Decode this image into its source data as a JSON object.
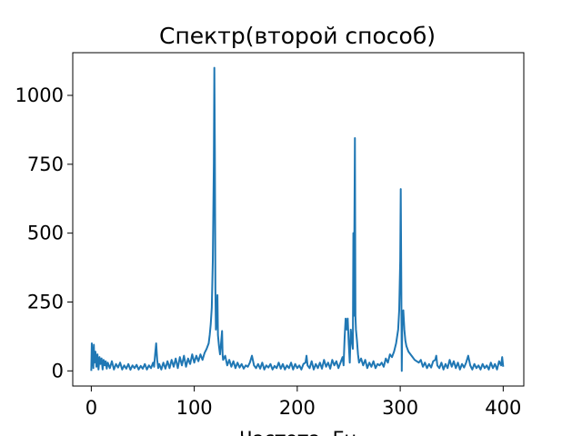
{
  "chart_data": {
    "type": "line",
    "title": "Спектр(второй способ)",
    "xlabel": "Частота, Гц",
    "ylabel": "",
    "xlim": [
      -18,
      420
    ],
    "ylim": [
      -55,
      1155
    ],
    "xticks": [
      0,
      100,
      200,
      300,
      400
    ],
    "yticks": [
      0,
      250,
      500,
      750,
      1000
    ],
    "grid": false,
    "series": [
      {
        "color": "#1f77b4",
        "points": [
          [
            0,
            0
          ],
          [
            0.5,
            100
          ],
          [
            1,
            20
          ],
          [
            1.5,
            85
          ],
          [
            2,
            10
          ],
          [
            2.5,
            95
          ],
          [
            3,
            30
          ],
          [
            4,
            70
          ],
          [
            5,
            15
          ],
          [
            6,
            60
          ],
          [
            7,
            5
          ],
          [
            8,
            50
          ],
          [
            9,
            25
          ],
          [
            10,
            45
          ],
          [
            11,
            5
          ],
          [
            12,
            40
          ],
          [
            13,
            20
          ],
          [
            14,
            35
          ],
          [
            15,
            8
          ],
          [
            16,
            30
          ],
          [
            18,
            10
          ],
          [
            20,
            35
          ],
          [
            22,
            5
          ],
          [
            24,
            25
          ],
          [
            26,
            12
          ],
          [
            28,
            30
          ],
          [
            30,
            5
          ],
          [
            32,
            20
          ],
          [
            34,
            8
          ],
          [
            36,
            25
          ],
          [
            38,
            4
          ],
          [
            40,
            20
          ],
          [
            42,
            10
          ],
          [
            44,
            22
          ],
          [
            46,
            5
          ],
          [
            48,
            18
          ],
          [
            50,
            8
          ],
          [
            52,
            25
          ],
          [
            54,
            5
          ],
          [
            56,
            20
          ],
          [
            58,
            10
          ],
          [
            60,
            30
          ],
          [
            61,
            15
          ],
          [
            62,
            60
          ],
          [
            63,
            100
          ],
          [
            64,
            40
          ],
          [
            65,
            10
          ],
          [
            66,
            25
          ],
          [
            68,
            5
          ],
          [
            70,
            30
          ],
          [
            72,
            8
          ],
          [
            74,
            35
          ],
          [
            76,
            10
          ],
          [
            78,
            40
          ],
          [
            80,
            15
          ],
          [
            82,
            45
          ],
          [
            84,
            10
          ],
          [
            86,
            50
          ],
          [
            88,
            20
          ],
          [
            90,
            55
          ],
          [
            92,
            15
          ],
          [
            94,
            45
          ],
          [
            96,
            25
          ],
          [
            98,
            60
          ],
          [
            100,
            30
          ],
          [
            102,
            55
          ],
          [
            104,
            35
          ],
          [
            106,
            60
          ],
          [
            108,
            40
          ],
          [
            110,
            65
          ],
          [
            112,
            80
          ],
          [
            114,
            100
          ],
          [
            115,
            130
          ],
          [
            116,
            170
          ],
          [
            117,
            230
          ],
          [
            118,
            400
          ],
          [
            119,
            750
          ],
          [
            119.5,
            1100
          ],
          [
            120,
            800
          ],
          [
            120.5,
            300
          ],
          [
            121,
            150
          ],
          [
            122,
            220
          ],
          [
            122.5,
            275
          ],
          [
            123,
            130
          ],
          [
            124,
            90
          ],
          [
            125,
            60
          ],
          [
            126,
            100
          ],
          [
            127,
            145
          ],
          [
            127.5,
            60
          ],
          [
            128,
            40
          ],
          [
            130,
            55
          ],
          [
            132,
            20
          ],
          [
            134,
            40
          ],
          [
            136,
            15
          ],
          [
            138,
            35
          ],
          [
            140,
            10
          ],
          [
            142,
            30
          ],
          [
            144,
            12
          ],
          [
            146,
            25
          ],
          [
            148,
            8
          ],
          [
            150,
            20
          ],
          [
            152,
            15
          ],
          [
            154,
            30
          ],
          [
            156,
            55
          ],
          [
            158,
            20
          ],
          [
            160,
            10
          ],
          [
            162,
            25
          ],
          [
            164,
            8
          ],
          [
            166,
            30
          ],
          [
            168,
            5
          ],
          [
            170,
            20
          ],
          [
            172,
            12
          ],
          [
            174,
            25
          ],
          [
            176,
            5
          ],
          [
            178,
            18
          ],
          [
            180,
            10
          ],
          [
            182,
            30
          ],
          [
            184,
            8
          ],
          [
            186,
            25
          ],
          [
            188,
            5
          ],
          [
            190,
            20
          ],
          [
            192,
            10
          ],
          [
            194,
            30
          ],
          [
            196,
            5
          ],
          [
            198,
            25
          ],
          [
            200,
            10
          ],
          [
            202,
            20
          ],
          [
            204,
            5
          ],
          [
            206,
            25
          ],
          [
            208,
            30
          ],
          [
            209,
            55
          ],
          [
            210,
            20
          ],
          [
            212,
            10
          ],
          [
            214,
            35
          ],
          [
            216,
            5
          ],
          [
            218,
            25
          ],
          [
            220,
            10
          ],
          [
            222,
            30
          ],
          [
            224,
            8
          ],
          [
            226,
            40
          ],
          [
            228,
            15
          ],
          [
            230,
            30
          ],
          [
            232,
            8
          ],
          [
            234,
            40
          ],
          [
            236,
            20
          ],
          [
            238,
            35
          ],
          [
            240,
            10
          ],
          [
            242,
            30
          ],
          [
            244,
            50
          ],
          [
            245,
            20
          ],
          [
            246,
            120
          ],
          [
            247,
            190
          ],
          [
            248,
            150
          ],
          [
            249,
            190
          ],
          [
            250,
            100
          ],
          [
            251,
            30
          ],
          [
            252,
            150
          ],
          [
            253,
            110
          ],
          [
            254,
            80
          ],
          [
            254.5,
            500
          ],
          [
            255,
            200
          ],
          [
            256,
            845
          ],
          [
            256.5,
            200
          ],
          [
            257,
            150
          ],
          [
            258,
            110
          ],
          [
            259,
            60
          ],
          [
            260,
            30
          ],
          [
            262,
            45
          ],
          [
            264,
            20
          ],
          [
            266,
            40
          ],
          [
            268,
            10
          ],
          [
            270,
            30
          ],
          [
            272,
            15
          ],
          [
            274,
            35
          ],
          [
            276,
            10
          ],
          [
            278,
            25
          ],
          [
            280,
            20
          ],
          [
            282,
            30
          ],
          [
            284,
            15
          ],
          [
            286,
            45
          ],
          [
            288,
            30
          ],
          [
            290,
            60
          ],
          [
            292,
            50
          ],
          [
            294,
            70
          ],
          [
            296,
            100
          ],
          [
            298,
            150
          ],
          [
            299,
            220
          ],
          [
            300,
            400
          ],
          [
            300.5,
            660
          ],
          [
            301,
            350
          ],
          [
            301.5,
            0
          ],
          [
            302,
            180
          ],
          [
            303,
            220
          ],
          [
            304,
            150
          ],
          [
            305,
            110
          ],
          [
            306,
            90
          ],
          [
            308,
            70
          ],
          [
            310,
            60
          ],
          [
            312,
            50
          ],
          [
            314,
            40
          ],
          [
            316,
            35
          ],
          [
            318,
            30
          ],
          [
            320,
            40
          ],
          [
            322,
            15
          ],
          [
            324,
            30
          ],
          [
            326,
            10
          ],
          [
            328,
            25
          ],
          [
            330,
            12
          ],
          [
            332,
            35
          ],
          [
            334,
            40
          ],
          [
            335,
            55
          ],
          [
            336,
            20
          ],
          [
            338,
            10
          ],
          [
            340,
            30
          ],
          [
            342,
            5
          ],
          [
            344,
            25
          ],
          [
            346,
            10
          ],
          [
            348,
            40
          ],
          [
            350,
            15
          ],
          [
            352,
            35
          ],
          [
            354,
            10
          ],
          [
            356,
            30
          ],
          [
            358,
            5
          ],
          [
            360,
            25
          ],
          [
            362,
            12
          ],
          [
            364,
            30
          ],
          [
            366,
            55
          ],
          [
            368,
            20
          ],
          [
            370,
            5
          ],
          [
            372,
            25
          ],
          [
            374,
            10
          ],
          [
            376,
            20
          ],
          [
            378,
            5
          ],
          [
            380,
            25
          ],
          [
            382,
            10
          ],
          [
            384,
            20
          ],
          [
            386,
            5
          ],
          [
            388,
            30
          ],
          [
            390,
            10
          ],
          [
            392,
            25
          ],
          [
            394,
            5
          ],
          [
            396,
            35
          ],
          [
            398,
            20
          ],
          [
            399,
            50
          ],
          [
            400,
            15
          ]
        ]
      }
    ]
  }
}
